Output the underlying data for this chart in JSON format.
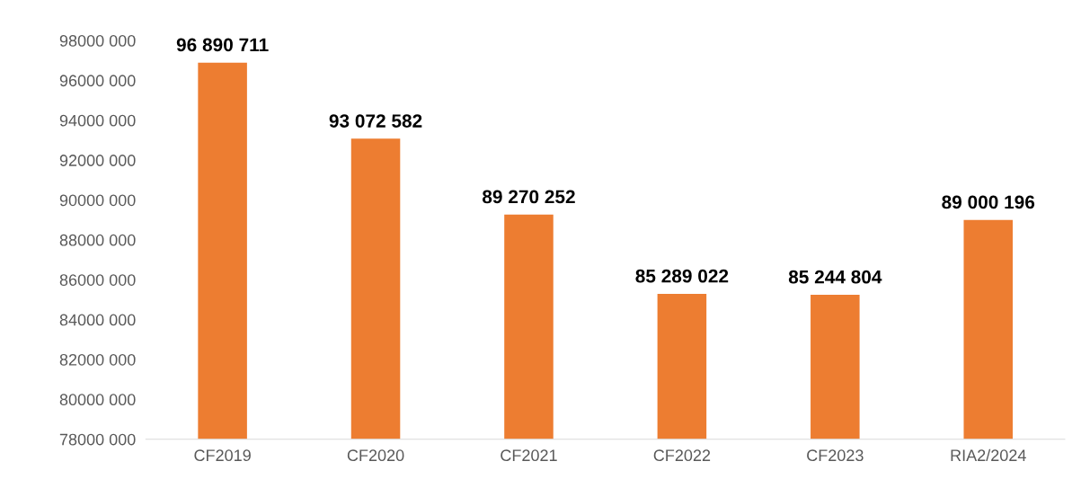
{
  "chart_data": {
    "type": "bar",
    "categories": [
      "CF2019",
      "CF2020",
      "CF2021",
      "CF2022",
      "CF2023",
      "RIA2/2024"
    ],
    "values": [
      96890711,
      93072582,
      89270252,
      85289022,
      85244804,
      89000196
    ],
    "value_labels": [
      "96 890 711",
      "93 072 582",
      "89 270 252",
      "85 289 022",
      "85 244 804",
      "89 000 196"
    ],
    "color": "#ed7d31",
    "ylim": [
      78000000,
      98000000
    ],
    "yticks": [
      {
        "value": 78000000,
        "label": "78000 000"
      },
      {
        "value": 80000000,
        "label": "80000 000"
      },
      {
        "value": 82000000,
        "label": "82000 000"
      },
      {
        "value": 84000000,
        "label": "84000 000"
      },
      {
        "value": 86000000,
        "label": "86000 000"
      },
      {
        "value": 88000000,
        "label": "88000 000"
      },
      {
        "value": 90000000,
        "label": "90000 000"
      },
      {
        "value": 92000000,
        "label": "92000 000"
      },
      {
        "value": 94000000,
        "label": "94000 000"
      },
      {
        "value": 96000000,
        "label": "96000 000"
      },
      {
        "value": 98000000,
        "label": "98000 000"
      }
    ],
    "grid": false,
    "legend": false
  }
}
